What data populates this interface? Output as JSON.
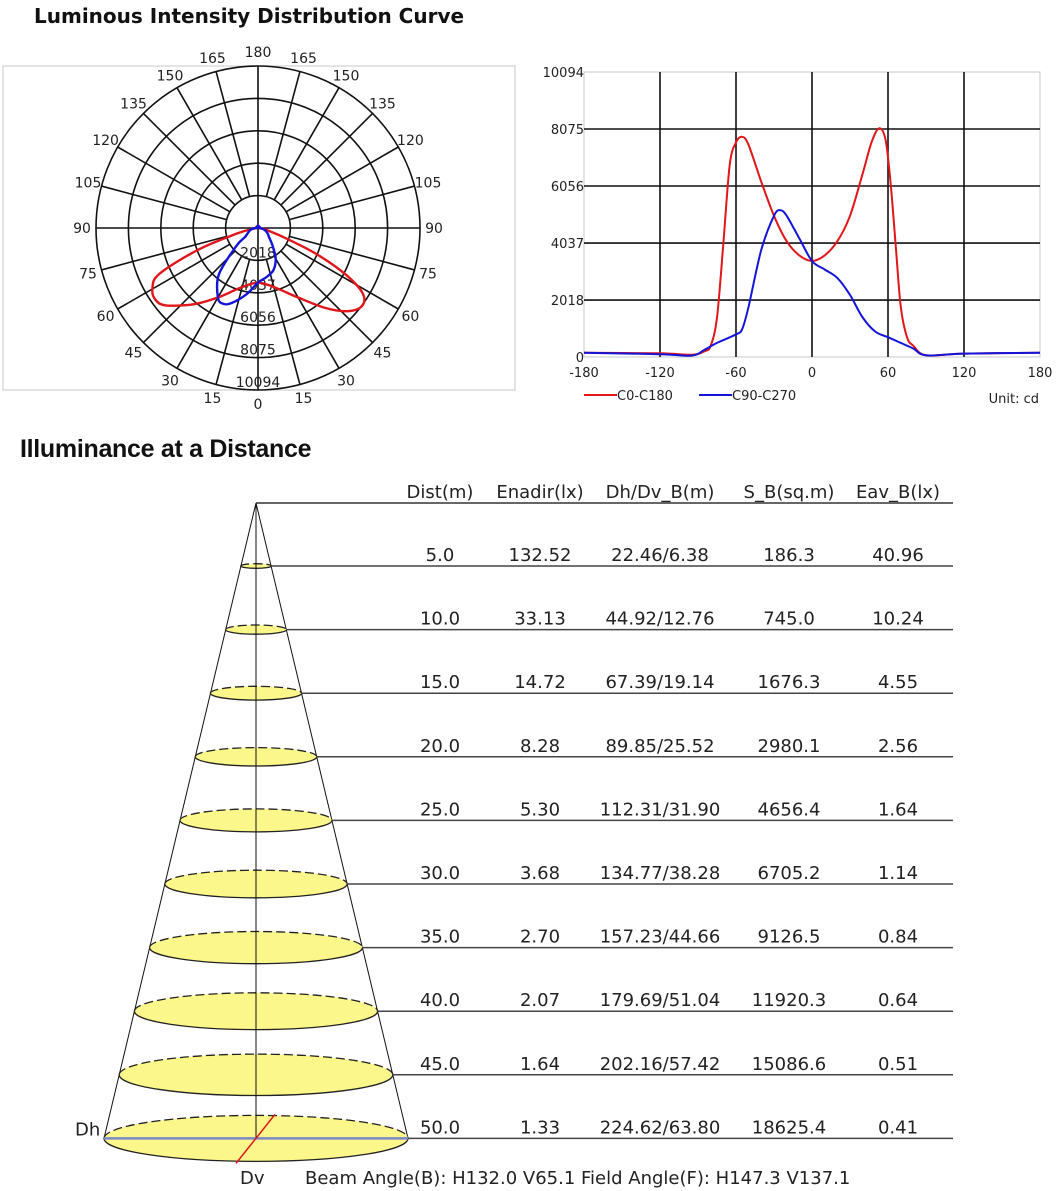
{
  "sections": {
    "intensity_title": "Luminous Intensity Distribution Curve",
    "illuminance_title": "Illuminance at a Distance"
  },
  "chart_data": [
    {
      "type": "polar",
      "angle_labels": [
        "0",
        "15",
        "30",
        "45",
        "60",
        "75",
        "90",
        "105",
        "120",
        "135",
        "150",
        "165",
        "180"
      ],
      "radial_ticks": [
        2018,
        4037,
        6056,
        8075,
        10094
      ],
      "rlim": [
        0,
        10094
      ],
      "grid": true,
      "series": [
        {
          "name": "C0-C180",
          "color": "#e0161b"
        },
        {
          "name": "C90-C270",
          "color": "#1414d8"
        }
      ]
    },
    {
      "type": "line",
      "xlim": [
        -180,
        180
      ],
      "ylim": [
        0,
        10094
      ],
      "x_ticks": [
        -180,
        -120,
        -60,
        0,
        60,
        120,
        180
      ],
      "y_ticks": [
        0,
        2018,
        4037,
        6056,
        8075,
        10094
      ],
      "grid": true,
      "legend": "bottom-left",
      "unit_label": "Unit: cd",
      "series": [
        {
          "name": "C0-C180",
          "color": "#e0161b",
          "x": [
            -180,
            -120,
            -95,
            -85,
            -80,
            -75,
            -70,
            -65,
            -60,
            -55,
            -50,
            -40,
            -30,
            -20,
            -10,
            0,
            10,
            20,
            30,
            40,
            47,
            53,
            58,
            62,
            66,
            70,
            75,
            80,
            90,
            120,
            180
          ],
          "y": [
            150,
            130,
            80,
            200,
            400,
            1400,
            4000,
            6800,
            7600,
            7800,
            7500,
            6200,
            5000,
            4100,
            3600,
            3400,
            3600,
            4100,
            5000,
            6500,
            7600,
            8100,
            7700,
            6200,
            4000,
            1800,
            700,
            400,
            60,
            120,
            150
          ]
        },
        {
          "name": "C90-C270",
          "color": "#1414d8",
          "x": [
            -180,
            -120,
            -95,
            -85,
            -75,
            -60,
            -55,
            -50,
            -40,
            -30,
            -25,
            -20,
            -10,
            0,
            10,
            20,
            30,
            40,
            50,
            60,
            70,
            80,
            90,
            120,
            180
          ],
          "y": [
            150,
            100,
            50,
            250,
            500,
            800,
            1000,
            1800,
            3800,
            5000,
            5200,
            5000,
            4200,
            3400,
            3100,
            2800,
            2200,
            1400,
            900,
            700,
            500,
            300,
            60,
            120,
            150
          ]
        }
      ]
    },
    {
      "type": "table",
      "columns": [
        "Dist(m)",
        "Enadir(lx)",
        "Dh/Dv_B(m)",
        "S_B(sq.m)",
        "Eav_B(lx)"
      ],
      "rows": [
        [
          "5.0",
          "132.52",
          "22.46/6.38",
          "186.3",
          "40.96"
        ],
        [
          "10.0",
          "33.13",
          "44.92/12.76",
          "745.0",
          "10.24"
        ],
        [
          "15.0",
          "14.72",
          "67.39/19.14",
          "1676.3",
          "4.55"
        ],
        [
          "20.0",
          "8.28",
          "89.85/25.52",
          "2980.1",
          "2.56"
        ],
        [
          "25.0",
          "5.30",
          "112.31/31.90",
          "4656.4",
          "1.64"
        ],
        [
          "30.0",
          "3.68",
          "134.77/38.28",
          "6705.2",
          "1.14"
        ],
        [
          "35.0",
          "2.70",
          "157.23/44.66",
          "9126.5",
          "0.84"
        ],
        [
          "40.0",
          "2.07",
          "179.69/51.04",
          "11920.3",
          "0.64"
        ],
        [
          "45.0",
          "1.64",
          "202.16/57.42",
          "15086.6",
          "0.51"
        ],
        [
          "50.0",
          "1.33",
          "224.62/63.80",
          "18625.4",
          "0.41"
        ]
      ],
      "dh_label": "Dh",
      "dv_label": "Dv",
      "footer": "Beam Angle(B): H132.0 V65.1  Field Angle(F): H147.3 V137.1",
      "spot_color": "#fbf78a"
    }
  ]
}
